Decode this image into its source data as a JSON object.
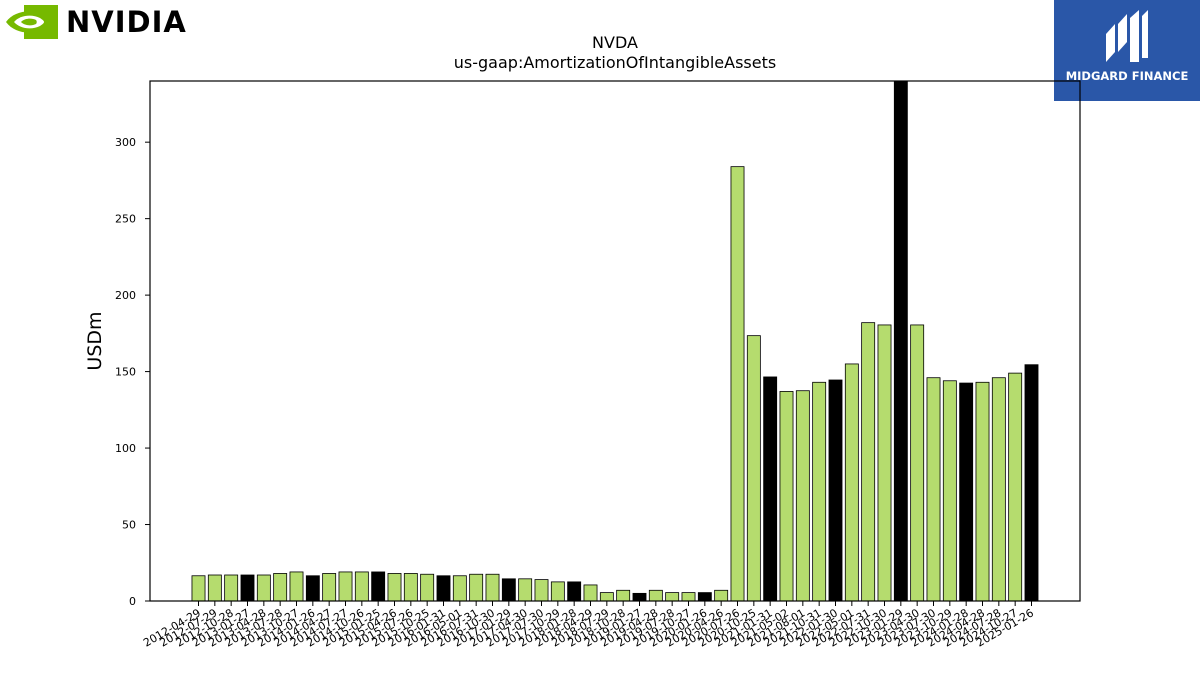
{
  "brand_left": {
    "wordmark": "NVIDIA",
    "logo_icon": "nvidia-eye-icon",
    "color": "#76b900"
  },
  "brand_right": {
    "wordmark": "MIDGARD FINANCE",
    "logo_icon": "midgard-mark-icon",
    "color": "#2a57a8"
  },
  "chart_data": {
    "type": "bar",
    "title": "NVDA",
    "subtitle": "us-gaap:AmortizationOfIntangibleAssets",
    "ylabel": "USDm",
    "xlabel": "",
    "ylim": [
      0,
      340
    ],
    "yticks": [
      0,
      50,
      100,
      150,
      200,
      250,
      300
    ],
    "grid": false,
    "colors": {
      "quarter": "#b5dc6e",
      "fiscal_year_end": "#000000",
      "edge": "#000000"
    },
    "categories": [
      "2012-04-29",
      "2012-07-29",
      "2012-10-28",
      "2013-01-27",
      "2013-04-28",
      "2013-07-28",
      "2013-10-27",
      "2014-01-26",
      "2014-04-27",
      "2014-07-27",
      "2014-10-26",
      "2015-01-25",
      "2015-04-26",
      "2015-07-26",
      "2015-10-25",
      "2016-01-31",
      "2016-05-01",
      "2016-07-31",
      "2016-10-30",
      "2017-01-29",
      "2017-04-30",
      "2017-07-30",
      "2017-10-29",
      "2018-01-28",
      "2018-04-29",
      "2018-07-29",
      "2018-10-28",
      "2019-01-27",
      "2019-04-28",
      "2019-07-28",
      "2019-10-27",
      "2020-01-26",
      "2020-04-26",
      "2020-07-26",
      "2020-10-25",
      "2021-01-31",
      "2021-05-02",
      "2021-08-01",
      "2021-10-31",
      "2022-01-30",
      "2022-05-01",
      "2022-07-31",
      "2022-10-30",
      "2023-01-29",
      "2023-04-30",
      "2023-07-30",
      "2023-10-29",
      "2024-01-28",
      "2024-04-28",
      "2024-07-28",
      "2024-10-27",
      "2025-01-26"
    ],
    "values": [
      16.5,
      17,
      17,
      17,
      17,
      18,
      19,
      16.5,
      18,
      19,
      19,
      19,
      18,
      18,
      17.5,
      16.5,
      16.5,
      17.5,
      17.5,
      14.5,
      14.5,
      14,
      12.5,
      12.5,
      10.5,
      5.5,
      7,
      5,
      7,
      5.5,
      5.5,
      5.5,
      7,
      284,
      173.5,
      146.5,
      137,
      137.5,
      143,
      144.5,
      155,
      182,
      180.5,
      340,
      180.5,
      146,
      144,
      142.5,
      143,
      146,
      149,
      154.5
    ],
    "fiscal_year_end": [
      false,
      false,
      false,
      true,
      false,
      false,
      false,
      true,
      false,
      false,
      false,
      true,
      false,
      false,
      false,
      true,
      false,
      false,
      false,
      true,
      false,
      false,
      false,
      true,
      false,
      false,
      false,
      true,
      false,
      false,
      false,
      true,
      false,
      false,
      false,
      true,
      false,
      false,
      false,
      true,
      false,
      false,
      false,
      true,
      false,
      false,
      false,
      true,
      false,
      false,
      false,
      true
    ]
  }
}
